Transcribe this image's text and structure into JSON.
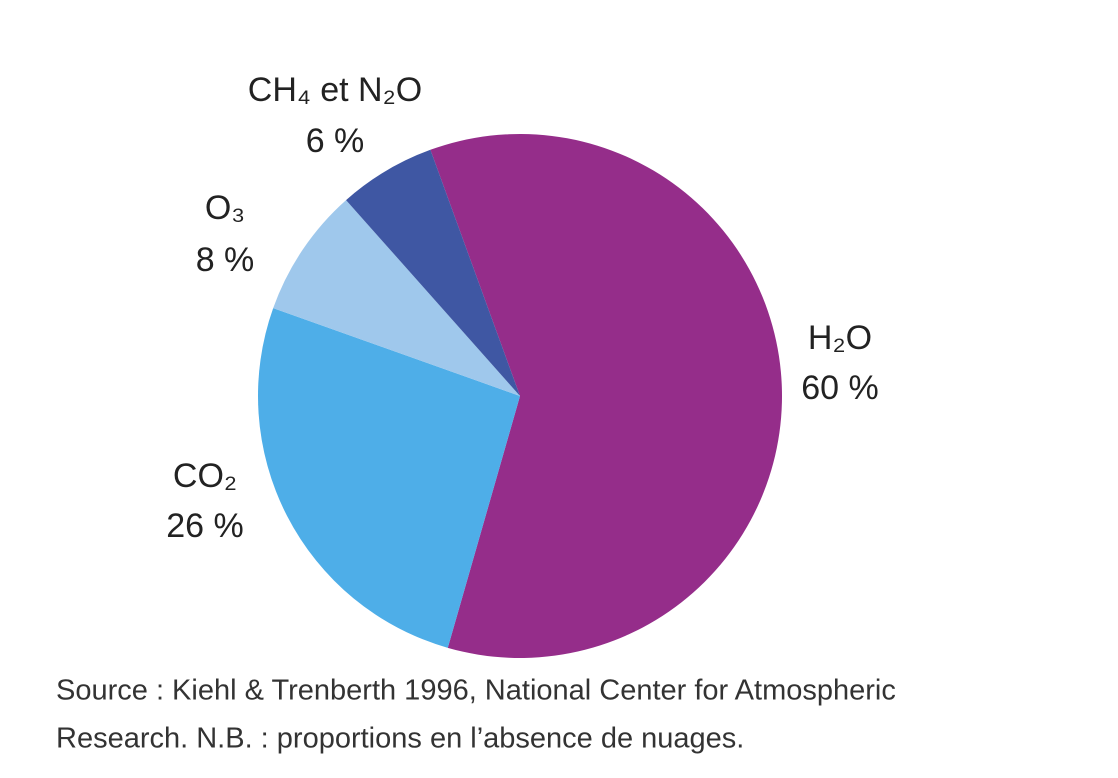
{
  "chart_data": {
    "type": "pie",
    "categories": [
      "H₂O",
      "CO₂",
      "O₃",
      "CH₄ et N₂O"
    ],
    "values": [
      60,
      26,
      8,
      6
    ],
    "value_labels": [
      "60 %",
      "26 %",
      "8 %",
      "6 %"
    ],
    "colors": [
      "#952d8a",
      "#4eaee8",
      "#9fc8ec",
      "#3f57a3"
    ],
    "source": [
      "Source : Kiehl & Trenberth 1996, National Center for Atmospheric",
      "Research.  N.B. : proportions en l’absence de nuages."
    ]
  }
}
